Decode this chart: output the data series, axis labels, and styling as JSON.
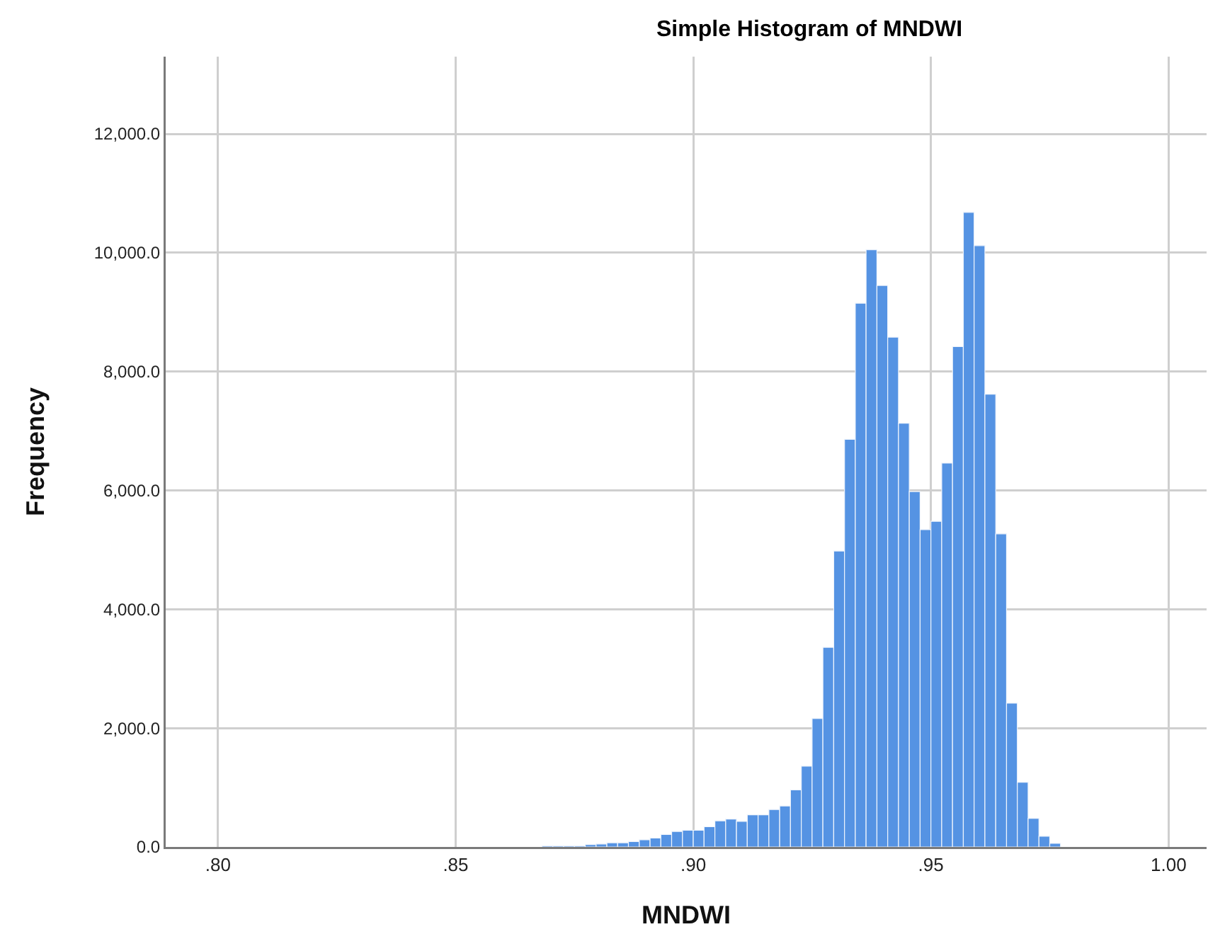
{
  "chart_data": {
    "type": "histogram",
    "title": "Simple Histogram of MNDWI",
    "xlabel": "MNDWI",
    "ylabel": "Frequency",
    "color": "#5593e3",
    "bins": [
      0.85455,
      0.85682,
      0.85909,
      0.86136,
      0.86364,
      0.86591,
      0.86818,
      0.87045,
      0.87273,
      0.875,
      0.87727,
      0.87955,
      0.88182,
      0.88409,
      0.88636,
      0.88864,
      0.89091,
      0.89318,
      0.89545,
      0.89773,
      0.9,
      0.90227,
      0.90455,
      0.90682,
      0.90909,
      0.91136,
      0.91364,
      0.91591,
      0.91818,
      0.92045,
      0.92273,
      0.925,
      0.92727,
      0.92955,
      0.93182,
      0.93409,
      0.93636,
      0.93864,
      0.94091,
      0.94318,
      0.94545,
      0.94773,
      0.95,
      0.95227,
      0.95455,
      0.95682,
      0.95909,
      0.96136,
      0.96364,
      0.96591,
      0.96818,
      0.97045,
      0.97273,
      0.975,
      0.97727
    ],
    "values": [
      null,
      null,
      null,
      null,
      null,
      null,
      20,
      20,
      20,
      20,
      40,
      50,
      70,
      70,
      90,
      120,
      150,
      210,
      260,
      280,
      280,
      340,
      440,
      470,
      430,
      540,
      540,
      630,
      690,
      960,
      1360,
      2160,
      3360,
      4980,
      6860,
      9150,
      10050,
      9450,
      8580,
      7130,
      5980,
      5340,
      5480,
      6460,
      8420,
      10680,
      10120,
      7620,
      5270,
      2420,
      1090,
      480,
      180,
      60
    ],
    "xlim": [
      0.789,
      1.008
    ],
    "ylim": [
      0,
      13300
    ],
    "xticks": [
      {
        "value": 0.8,
        "label": ".80"
      },
      {
        "value": 0.85,
        "label": ".85"
      },
      {
        "value": 0.9,
        "label": ".90"
      },
      {
        "value": 0.95,
        "label": ".95"
      },
      {
        "value": 1.0,
        "label": "1.00"
      }
    ],
    "yticks": [
      {
        "value": 0,
        "label": "0.0"
      },
      {
        "value": 2000,
        "label": "2,000.0"
      },
      {
        "value": 4000,
        "label": "4,000.0"
      },
      {
        "value": 6000,
        "label": "6,000.0"
      },
      {
        "value": 8000,
        "label": "8,000.0"
      },
      {
        "value": 10000,
        "label": "10,000.0"
      },
      {
        "value": 12000,
        "label": "12,000.0"
      }
    ],
    "grid": true
  }
}
